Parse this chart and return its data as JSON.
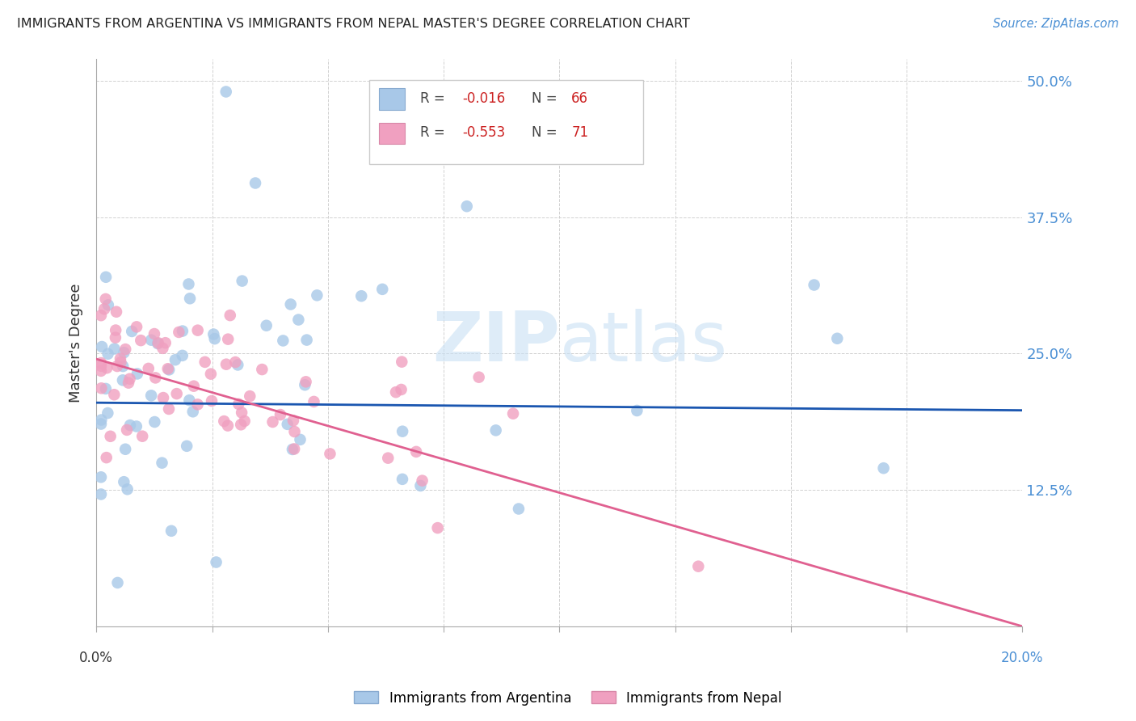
{
  "title": "IMMIGRANTS FROM ARGENTINA VS IMMIGRANTS FROM NEPAL MASTER'S DEGREE CORRELATION CHART",
  "source": "Source: ZipAtlas.com",
  "ylabel": "Master's Degree",
  "legend_label_argentina": "Immigrants from Argentina",
  "legend_label_nepal": "Immigrants from Nepal",
  "color_argentina": "#a8c8e8",
  "color_nepal": "#f0a0c0",
  "line_color_argentina": "#1a56b0",
  "line_color_nepal": "#e06090",
  "background_color": "#ffffff",
  "xlim": [
    0.0,
    0.2
  ],
  "ylim": [
    0.0,
    0.52
  ],
  "ytick_vals": [
    0.0,
    0.125,
    0.25,
    0.375,
    0.5
  ],
  "ytick_labels": [
    "",
    "12.5%",
    "25.0%",
    "37.5%",
    "50.0%"
  ],
  "r_argentina": -0.016,
  "n_argentina": 66,
  "r_nepal": -0.553,
  "n_nepal": 71,
  "arg_line_x0": 0.0,
  "arg_line_y0": 0.205,
  "arg_line_x1": 0.2,
  "arg_line_y1": 0.198,
  "nep_line_x0": 0.0,
  "nep_line_y0": 0.245,
  "nep_line_x1": 0.2,
  "nep_line_y1": 0.0
}
